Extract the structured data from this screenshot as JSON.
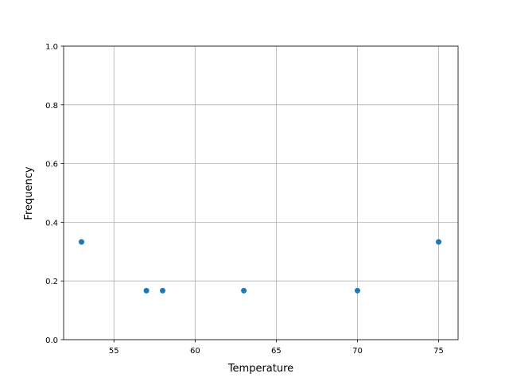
{
  "chart_data": {
    "type": "scatter",
    "title": "",
    "xlabel": "Temperature",
    "ylabel": "Frequency",
    "xlim": [
      51.9,
      76.2
    ],
    "ylim": [
      0,
      1.0
    ],
    "grid": true,
    "x_ticks": [
      55,
      60,
      65,
      70,
      75
    ],
    "x_tick_labels": [
      "55",
      "60",
      "65",
      "70",
      "75"
    ],
    "y_ticks": [
      0,
      0.2,
      0.4,
      0.6,
      0.8,
      1.0
    ],
    "y_tick_labels": [
      "0.0",
      "0.2",
      "0.4",
      "0.6",
      "0.8",
      "1.0"
    ],
    "color": "#1f77b4",
    "points": [
      {
        "x": 53,
        "y": 0.333
      },
      {
        "x": 57,
        "y": 0.167
      },
      {
        "x": 58,
        "y": 0.167
      },
      {
        "x": 63,
        "y": 0.167
      },
      {
        "x": 70,
        "y": 0.167
      },
      {
        "x": 75,
        "y": 0.333
      }
    ]
  }
}
